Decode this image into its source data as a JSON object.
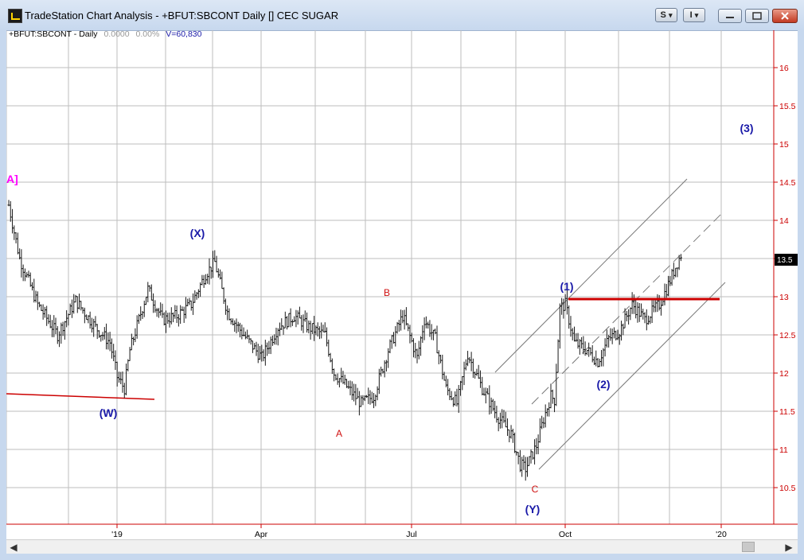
{
  "window": {
    "title": "TradeStation Chart Analysis - +BFUT:SBCONT Daily [] CEC SUGAR",
    "toolbar_s_label": "S",
    "toolbar_i_label": "I",
    "toolbar_dropdown_arrow": "▾"
  },
  "chart_header": {
    "symbol": "+BFUT:SBCONT - Daily",
    "change": "0.0000",
    "change_pct": "0.00%",
    "volume": "V=60,830"
  },
  "colors": {
    "price_axis": "#cc0000",
    "bars": "#1a1a1a",
    "wave_blue": "#1a1aa8",
    "wave_red": "#d01010",
    "magenta": "#ff00ff",
    "grid": "#bdbdbd",
    "resistance": "#cc0000"
  },
  "icons": {
    "scroll_left": "◀",
    "scroll_right": "▶"
  },
  "chart_data": {
    "type": "ohlc",
    "title": "",
    "price_axis": {
      "ticks": [
        10.5,
        11,
        11.5,
        12,
        12.5,
        13,
        13.5,
        14,
        14.5,
        15,
        15.5,
        16
      ],
      "last_price_label": "13.5",
      "last_price": 13.5
    },
    "time_axis_labels": [
      "'19",
      "Apr",
      "Jul",
      "Oct",
      "'20"
    ],
    "anchor_points": [
      {
        "i": 0,
        "p": 14.2
      },
      {
        "i": 6,
        "p": 13.5
      },
      {
        "i": 16,
        "p": 12.9
      },
      {
        "i": 27,
        "p": 12.5
      },
      {
        "i": 37,
        "p": 12.95
      },
      {
        "i": 48,
        "p": 12.6
      },
      {
        "i": 56,
        "p": 12.4
      },
      {
        "i": 60,
        "p": 11.95
      },
      {
        "i": 64,
        "p": 11.8
      },
      {
        "i": 67,
        "p": 12.3
      },
      {
        "i": 77,
        "p": 13.1
      },
      {
        "i": 85,
        "p": 12.7
      },
      {
        "i": 93,
        "p": 12.75
      },
      {
        "i": 101,
        "p": 12.9
      },
      {
        "i": 109,
        "p": 13.3
      },
      {
        "i": 114,
        "p": 13.45
      },
      {
        "i": 121,
        "p": 12.8
      },
      {
        "i": 130,
        "p": 12.5
      },
      {
        "i": 140,
        "p": 12.2
      },
      {
        "i": 149,
        "p": 12.6
      },
      {
        "i": 158,
        "p": 12.75
      },
      {
        "i": 166,
        "p": 12.6
      },
      {
        "i": 175,
        "p": 12.5
      },
      {
        "i": 180,
        "p": 12.0
      },
      {
        "i": 186,
        "p": 11.85
      },
      {
        "i": 195,
        "p": 11.6
      },
      {
        "i": 202,
        "p": 11.7
      },
      {
        "i": 210,
        "p": 12.3
      },
      {
        "i": 218,
        "p": 12.75
      },
      {
        "i": 221,
        "p": 12.55
      },
      {
        "i": 226,
        "p": 12.2
      },
      {
        "i": 230,
        "p": 12.7
      },
      {
        "i": 236,
        "p": 12.45
      },
      {
        "i": 242,
        "p": 11.8
      },
      {
        "i": 248,
        "p": 11.6
      },
      {
        "i": 254,
        "p": 12.25
      },
      {
        "i": 262,
        "p": 11.8
      },
      {
        "i": 270,
        "p": 11.45
      },
      {
        "i": 278,
        "p": 11.2
      },
      {
        "i": 283,
        "p": 10.8
      },
      {
        "i": 286,
        "p": 10.75
      },
      {
        "i": 292,
        "p": 11.05
      },
      {
        "i": 296,
        "p": 11.4
      },
      {
        "i": 300,
        "p": 11.7
      },
      {
        "i": 302,
        "p": 11.65
      },
      {
        "i": 305,
        "p": 12.85
      },
      {
        "i": 308,
        "p": 12.9
      },
      {
        "i": 313,
        "p": 12.4
      },
      {
        "i": 320,
        "p": 12.3
      },
      {
        "i": 326,
        "p": 12.15
      },
      {
        "i": 332,
        "p": 12.45
      },
      {
        "i": 338,
        "p": 12.55
      },
      {
        "i": 345,
        "p": 12.9
      },
      {
        "i": 352,
        "p": 12.7
      },
      {
        "i": 360,
        "p": 12.9
      },
      {
        "i": 364,
        "p": 13.1
      },
      {
        "i": 370,
        "p": 13.45
      },
      {
        "i": 372,
        "p": 13.55
      }
    ],
    "wave_labels": [
      {
        "text": "(W)",
        "color": "blue"
      },
      {
        "text": "(X)",
        "color": "blue"
      },
      {
        "text": "A",
        "color": "red"
      },
      {
        "text": "B",
        "color": "red"
      },
      {
        "text": "C",
        "color": "red"
      },
      {
        "text": "(Y)",
        "color": "blue"
      },
      {
        "text": "(1)",
        "color": "blue"
      },
      {
        "text": "(2)",
        "color": "blue"
      },
      {
        "text": "(3)",
        "color": "blue"
      },
      {
        "text": "A]",
        "color": "magenta"
      }
    ],
    "resistance_line_price": 12.98,
    "grid": true
  }
}
